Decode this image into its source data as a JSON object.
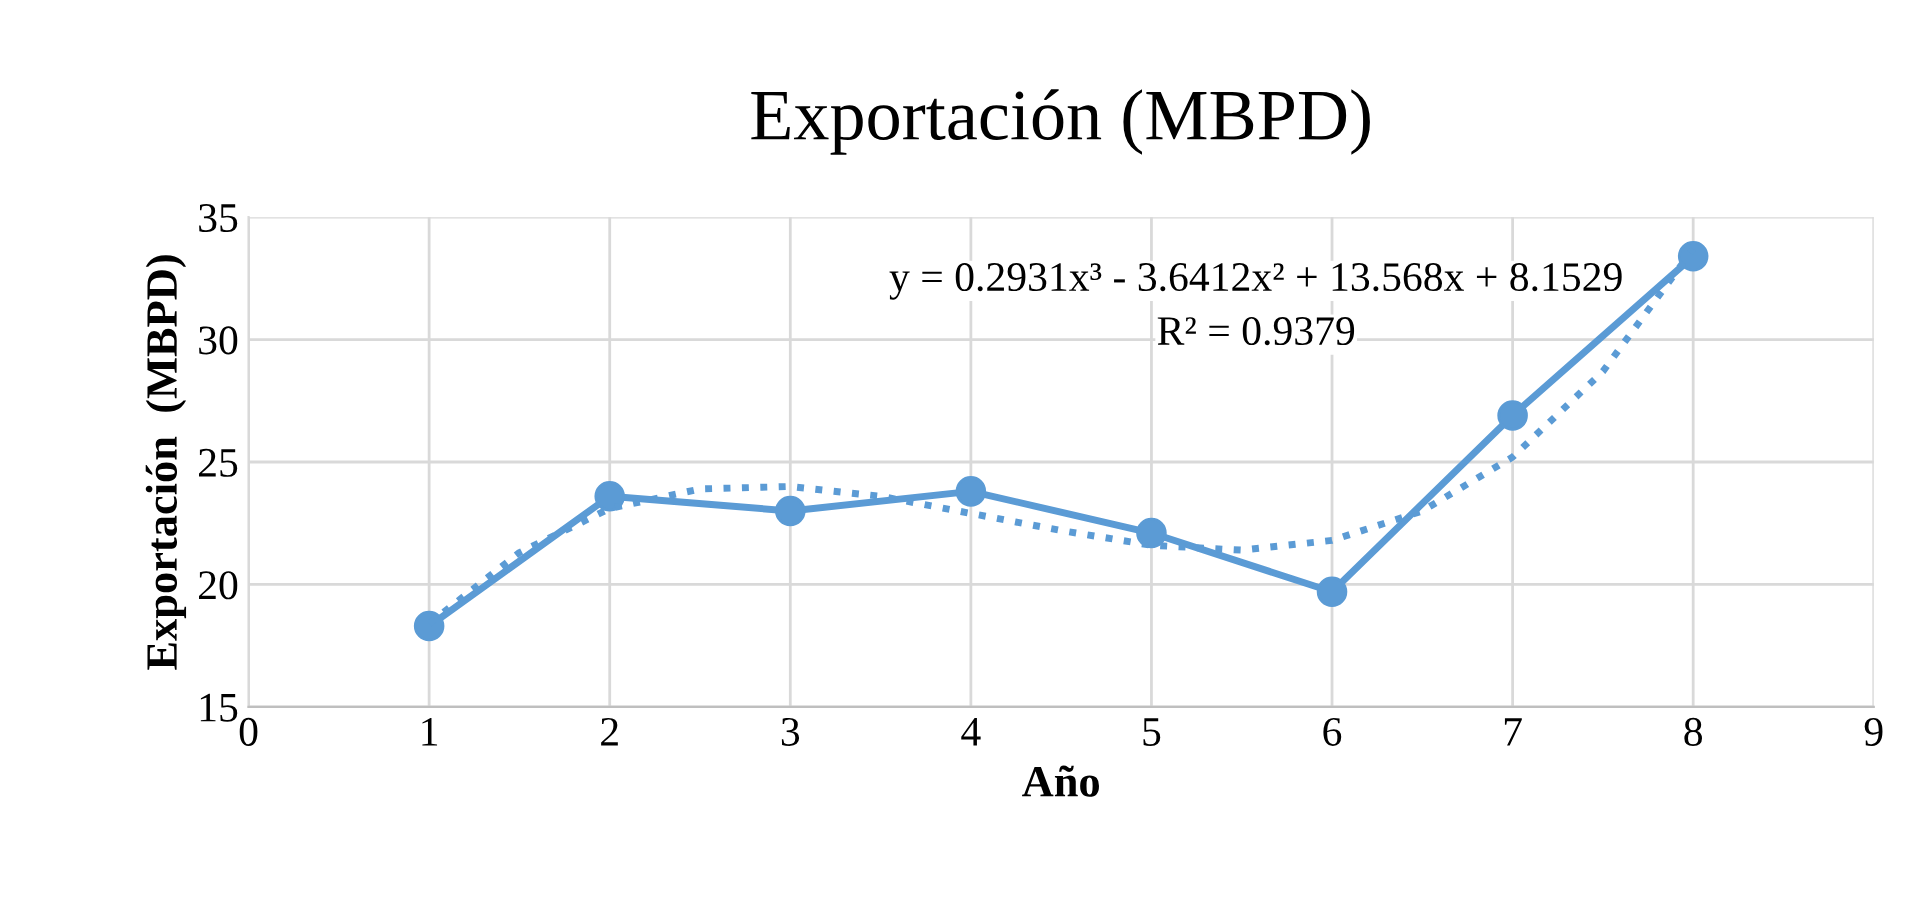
{
  "chart_data": {
    "type": "line",
    "title": "Exportación (MBPD)",
    "xlabel": "Año",
    "ylabel": "Exportación  (MBPD)",
    "xlim": [
      0,
      9
    ],
    "xticks": [
      0,
      1,
      2,
      3,
      4,
      5,
      6,
      7,
      8,
      9
    ],
    "ylim": [
      15,
      35
    ],
    "yticks": [
      15,
      20,
      25,
      30,
      35
    ],
    "grid": true,
    "annotations": [
      "y = 0.2931x³ - 3.6412x² + 13.568x + 8.1529",
      "R² = 0.9379"
    ],
    "series": [
      {
        "color": "#5b9bd5",
        "x": [
          1,
          2,
          3,
          4,
          5,
          6,
          7,
          8
        ],
        "values": [
          18.3,
          23.6,
          23.0,
          23.8,
          22.1,
          19.7,
          26.9,
          33.4
        ],
        "marker": "circle",
        "line_style": "solid"
      },
      {
        "color": "#5b9bd5",
        "x": [
          1,
          1.5,
          2,
          2.5,
          3,
          3.5,
          4,
          4.5,
          5,
          5.5,
          6,
          6.5,
          7,
          7.5,
          8
        ],
        "values": [
          18.4,
          21.3,
          23.1,
          23.9,
          24.0,
          23.6,
          22.9,
          22.2,
          21.6,
          21.4,
          21.8,
          23.0,
          25.2,
          28.7,
          33.7
        ],
        "marker": "none",
        "line_style": "dotted"
      }
    ]
  }
}
